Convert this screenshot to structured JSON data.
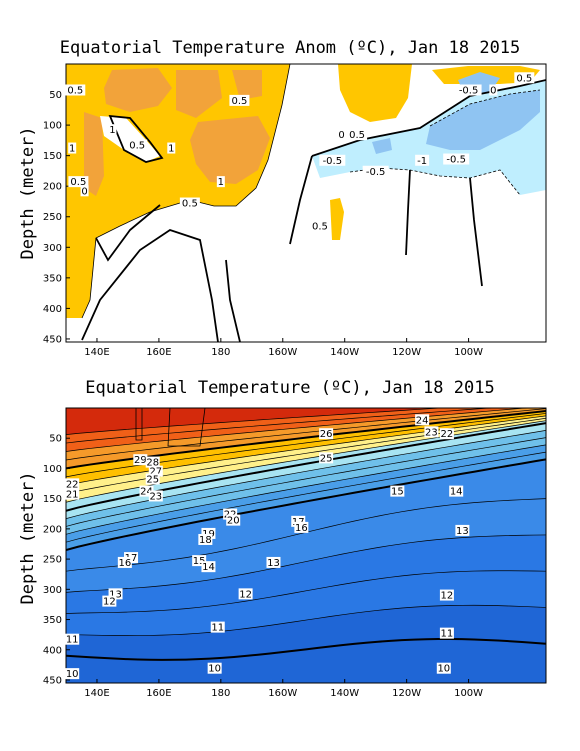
{
  "chart_data": [
    {
      "type": "heatmap",
      "title": "Equatorial Temperature Anom (ºC), Jan 18 2015",
      "ylabel": "Depth (meter)",
      "xlabel": "",
      "x_ticks": [
        "140E",
        "160E",
        "180",
        "160W",
        "140W",
        "120W",
        "100W"
      ],
      "x_tick_lon": [
        140,
        160,
        180,
        200,
        220,
        240,
        260
      ],
      "xlim": [
        130,
        285
      ],
      "y_ticks": [
        50,
        100,
        150,
        200,
        250,
        300,
        350,
        400,
        450
      ],
      "ylim": [
        0,
        455
      ],
      "contour_labels": [
        {
          "text": "0.5",
          "lon": 133,
          "depth": 45
        },
        {
          "text": "1",
          "lon": 145,
          "depth": 110
        },
        {
          "text": "0.5",
          "lon": 153,
          "depth": 135
        },
        {
          "text": "1",
          "lon": 164,
          "depth": 140
        },
        {
          "text": "0.5",
          "lon": 186,
          "depth": 62
        },
        {
          "text": "1",
          "lon": 180,
          "depth": 195
        },
        {
          "text": "0.5",
          "lon": 170,
          "depth": 230
        },
        {
          "text": "1",
          "lon": 132,
          "depth": 140
        },
        {
          "text": "0.5",
          "lon": 134,
          "depth": 195
        },
        {
          "text": "0",
          "lon": 136,
          "depth": 210
        },
        {
          "text": "0",
          "lon": 219,
          "depth": 118
        },
        {
          "text": "0.5",
          "lon": 224,
          "depth": 118
        },
        {
          "text": "-0.5",
          "lon": 216,
          "depth": 160
        },
        {
          "text": "-0.5",
          "lon": 230,
          "depth": 178
        },
        {
          "text": "-1",
          "lon": 245,
          "depth": 160
        },
        {
          "text": "-0.5",
          "lon": 256,
          "depth": 158
        },
        {
          "text": "0.5",
          "lon": 212,
          "depth": 268
        },
        {
          "text": "-0.5",
          "lon": 260,
          "depth": 45
        },
        {
          "text": "0",
          "lon": 268,
          "depth": 45
        },
        {
          "text": "0.5",
          "lon": 278,
          "depth": 25
        }
      ],
      "colors": {
        "pos05": "#ffc600",
        "pos1": "#f2a33a",
        "neg05": "#bfeefe",
        "neg1": "#8fc4f2"
      }
    },
    {
      "type": "heatmap",
      "title": "Equatorial Temperature (ºC), Jan 18 2015",
      "ylabel": "Depth (meter)",
      "xlabel": "",
      "x_ticks": [
        "140E",
        "160E",
        "180",
        "160W",
        "140W",
        "120W",
        "100W"
      ],
      "x_tick_lon": [
        140,
        160,
        180,
        200,
        220,
        240,
        260
      ],
      "xlim": [
        130,
        285
      ],
      "y_ticks": [
        50,
        100,
        150,
        200,
        250,
        300,
        350,
        400,
        450
      ],
      "ylim": [
        0,
        455
      ],
      "levels": [
        10,
        11,
        12,
        13,
        14,
        15,
        16,
        17,
        18,
        19,
        20,
        21,
        22,
        23,
        24,
        25,
        26,
        27,
        28,
        29
      ],
      "contour_labels": [
        {
          "text": "26",
          "lon": 214,
          "depth": 45
        },
        {
          "text": "24",
          "lon": 245,
          "depth": 22
        },
        {
          "text": "23",
          "lon": 248,
          "depth": 42
        },
        {
          "text": "22",
          "lon": 253,
          "depth": 45
        },
        {
          "text": "29",
          "lon": 154,
          "depth": 88
        },
        {
          "text": "28",
          "lon": 158,
          "depth": 92
        },
        {
          "text": "27",
          "lon": 159,
          "depth": 107
        },
        {
          "text": "25",
          "lon": 158,
          "depth": 120
        },
        {
          "text": "24",
          "lon": 156,
          "depth": 140
        },
        {
          "text": "23",
          "lon": 159,
          "depth": 148
        },
        {
          "text": "25",
          "lon": 214,
          "depth": 85
        },
        {
          "text": "22",
          "lon": 132,
          "depth": 128
        },
        {
          "text": "21",
          "lon": 132,
          "depth": 145
        },
        {
          "text": "22",
          "lon": 183,
          "depth": 178
        },
        {
          "text": "20",
          "lon": 184,
          "depth": 188
        },
        {
          "text": "17",
          "lon": 205,
          "depth": 190
        },
        {
          "text": "16",
          "lon": 206,
          "depth": 200
        },
        {
          "text": "19",
          "lon": 176,
          "depth": 210
        },
        {
          "text": "18",
          "lon": 175,
          "depth": 220
        },
        {
          "text": "15",
          "lon": 237,
          "depth": 140
        },
        {
          "text": "14",
          "lon": 256,
          "depth": 140
        },
        {
          "text": "17",
          "lon": 151,
          "depth": 250
        },
        {
          "text": "16",
          "lon": 149,
          "depth": 258
        },
        {
          "text": "15",
          "lon": 173,
          "depth": 255
        },
        {
          "text": "14",
          "lon": 176,
          "depth": 265
        },
        {
          "text": "13",
          "lon": 258,
          "depth": 205
        },
        {
          "text": "13",
          "lon": 197,
          "depth": 258
        },
        {
          "text": "13",
          "lon": 146,
          "depth": 310
        },
        {
          "text": "12",
          "lon": 144,
          "depth": 322
        },
        {
          "text": "12",
          "lon": 188,
          "depth": 310
        },
        {
          "text": "12",
          "lon": 253,
          "depth": 312
        },
        {
          "text": "11",
          "lon": 179,
          "depth": 365
        },
        {
          "text": "11",
          "lon": 132,
          "depth": 385
        },
        {
          "text": "11",
          "lon": 253,
          "depth": 375
        },
        {
          "text": "10",
          "lon": 178,
          "depth": 433
        },
        {
          "text": "10",
          "lon": 252,
          "depth": 433
        },
        {
          "text": "10",
          "lon": 132,
          "depth": 442
        }
      ]
    }
  ]
}
